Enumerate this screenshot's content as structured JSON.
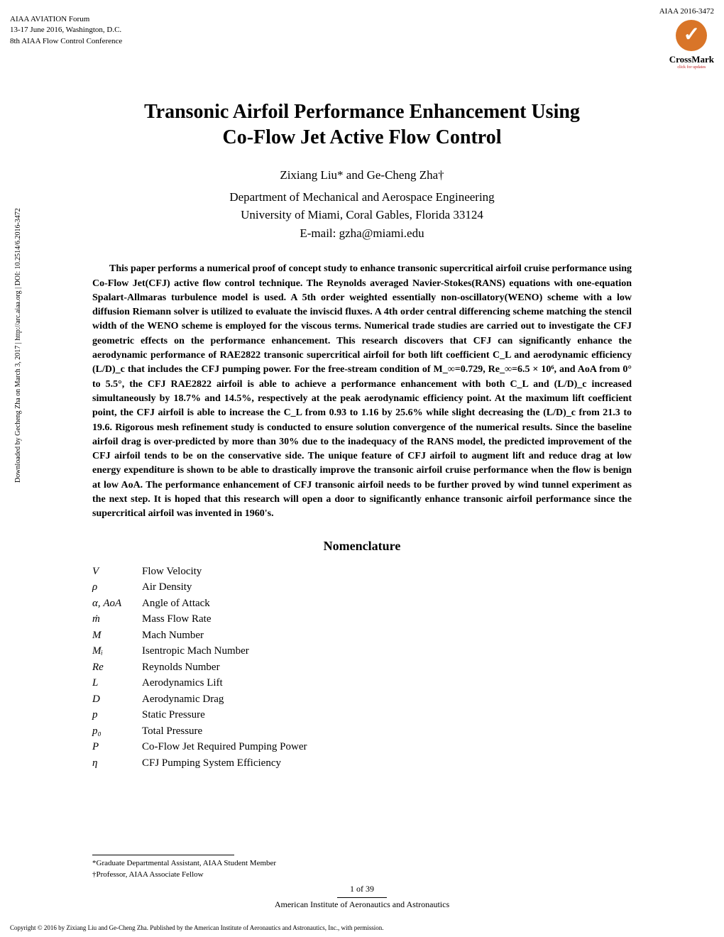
{
  "header": {
    "left_line1": "AIAA AVIATION Forum",
    "left_line2": "13-17 June 2016, Washington, D.C.",
    "left_line3": "8th AIAA Flow Control Conference",
    "right": "AIAA 2016-3472",
    "crossmark_label": "CrossMark",
    "crossmark_sub": "click for updates"
  },
  "side_note": "Downloaded by Gecheng Zha on March 3, 2017 | http://arc.aiaa.org | DOI: 10.2514/6.2016-3472",
  "title_line1": "Transonic Airfoil Performance Enhancement Using",
  "title_line2": "Co-Flow Jet Active Flow Control",
  "authors": "Zixiang Liu* and Ge-Cheng Zha†",
  "affiliation_line1": "Department of Mechanical and Aerospace Engineering",
  "affiliation_line2": "University of Miami, Coral Gables, Florida 33124",
  "affiliation_line3": "E-mail: gzha@miami.edu",
  "abstract": "This paper performs a numerical proof of concept study to enhance transonic supercritical airfoil cruise performance using Co-Flow Jet(CFJ) active flow control technique. The Reynolds averaged Navier-Stokes(RANS) equations with one-equation Spalart-Allmaras turbulence model is used. A 5th order weighted essentially non-oscillatory(WENO) scheme with a low diffusion Riemann solver is utilized to evaluate the inviscid fluxes. A 4th order central differencing scheme matching the stencil width of the WENO scheme is employed for the viscous terms. Numerical trade studies are carried out to investigate the CFJ geometric effects on the performance enhancement. This research discovers that CFJ can significantly enhance the aerodynamic performance of RAE2822 transonic supercritical airfoil for both lift coefficient C_L and aerodynamic efficiency (L/D)_c that includes the CFJ pumping power. For the free-stream condition of M_∞=0.729, Re_∞=6.5 × 10⁶, and AoA from 0° to 5.5°, the CFJ RAE2822 airfoil is able to achieve a performance enhancement with both C_L and (L/D)_c increased simultaneously by 18.7% and 14.5%, respectively at the peak aerodynamic efficiency point. At the maximum lift coefficient point, the CFJ airfoil is able to increase the C_L from 0.93 to 1.16 by 25.6% while slight decreasing the (L/D)_c from 21.3 to 19.6. Rigorous mesh refinement study is conducted to ensure solution convergence of the numerical results. Since the baseline airfoil drag is over-predicted by more than 30% due to the inadequacy of the RANS model, the predicted improvement of the CFJ airfoil tends to be on the conservative side. The unique feature of CFJ airfoil to augment lift and reduce drag at low energy expenditure is shown to be able to drastically improve the transonic airfoil cruise performance when the flow is benign at low AoA. The performance enhancement of CFJ transonic airfoil needs to be further proved by wind tunnel experiment as the next step. It is hoped that this research will open a door to significantly enhance transonic airfoil performance since the supercritical airfoil was invented in 1960's.",
  "nomenclature_heading": "Nomenclature",
  "nomenclature": [
    {
      "sym": "V",
      "def": "Flow Velocity"
    },
    {
      "sym": "ρ",
      "def": "Air Density"
    },
    {
      "sym": "α, AoA",
      "def": "Angle of Attack"
    },
    {
      "sym": "ṁ",
      "def": "Mass Flow Rate"
    },
    {
      "sym": "M",
      "def": "Mach Number"
    },
    {
      "sym": "Mᵢ",
      "def": "Isentropic Mach Number"
    },
    {
      "sym": "Re",
      "def": "Reynolds Number"
    },
    {
      "sym": "L",
      "def": "Aerodynamics Lift"
    },
    {
      "sym": "D",
      "def": "Aerodynamic Drag"
    },
    {
      "sym": "p",
      "def": "Static Pressure"
    },
    {
      "sym": "p₀",
      "def": "Total Pressure"
    },
    {
      "sym": "P",
      "def": "Co-Flow Jet Required Pumping Power"
    },
    {
      "sym": "η",
      "def": "CFJ Pumping System Efficiency"
    }
  ],
  "footnotes": {
    "fn1": "*Graduate Departmental Assistant, AIAA Student Member",
    "fn2": "†Professor, AIAA Associate Fellow"
  },
  "page_footer": {
    "num": "1 of 39",
    "org": "American Institute of Aeronautics and Astronautics"
  },
  "copyright": "Copyright © 2016 by Zixiang Liu and Ge-Cheng Zha. Published by the American Institute of Aeronautics and Astronautics, Inc., with permission."
}
